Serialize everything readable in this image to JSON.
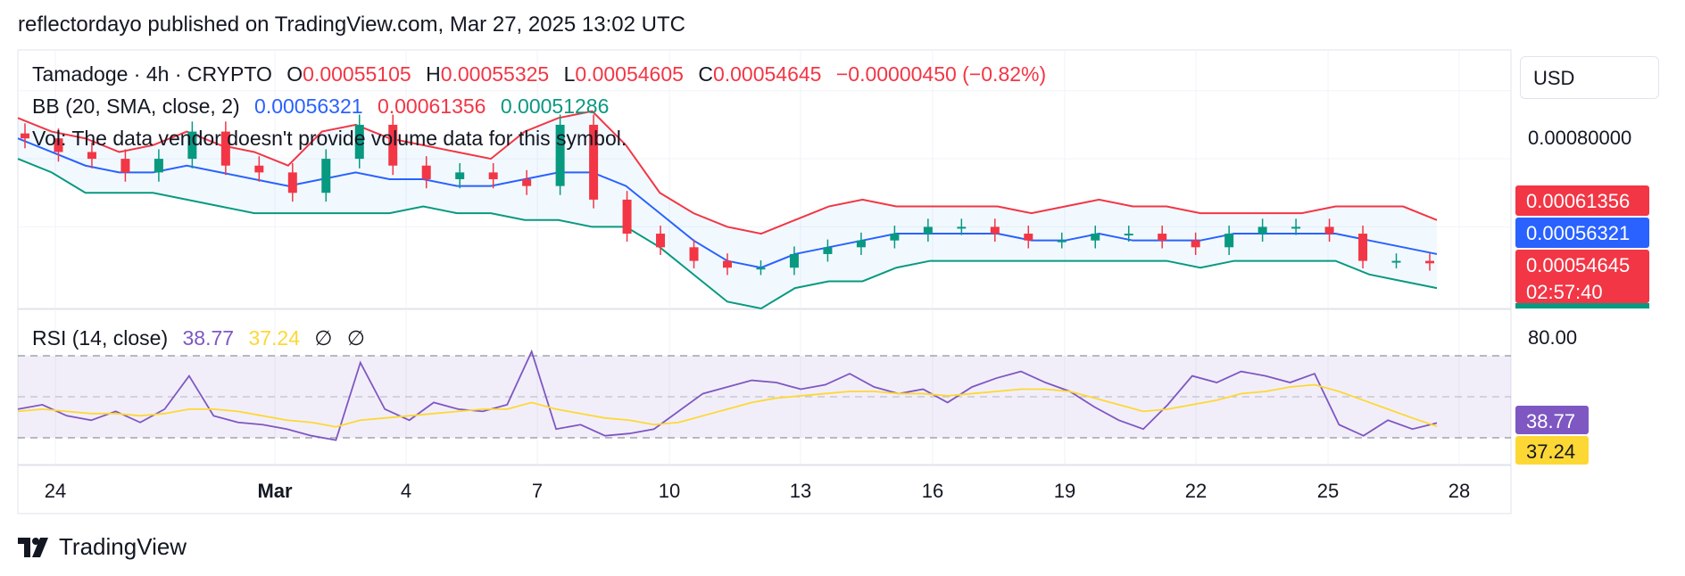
{
  "header": {
    "published": "reflectordayo published on TradingView.com, Mar 27, 2025 13:02 UTC"
  },
  "legend": {
    "symbol": "Tamadoge · 4h · CRYPTO",
    "o_label": "O",
    "o": "0.00055105",
    "h_label": "H",
    "h": "0.00055325",
    "l_label": "L",
    "l": "0.00054605",
    "c_label": "C",
    "c": "0.00054645",
    "change": "−0.00000450 (−0.82%)",
    "bb_label": "BB (20, SMA, close, 2)",
    "bb_mid": "0.00056321",
    "bb_upper": "0.00061356",
    "bb_lower": "0.00051286",
    "vol_note": "Vol: The data vendor doesn't provide volume data for this symbol.",
    "rsi_label": "RSI (14, close)",
    "rsi_value": "38.77",
    "rsi_ma": "37.24",
    "rsi_na1": "∅",
    "rsi_na2": "∅"
  },
  "currency_button": "USD",
  "footer": {
    "brand": "TradingView"
  },
  "colors": {
    "up": "#089981",
    "down": "#f23645",
    "bb_mid": "#2962ff",
    "rsi": "#7e57c2",
    "rsi_ma": "#fdd835"
  },
  "chart_data": [
    {
      "type": "candlestick",
      "title": "Tamadoge · 4h · CRYPTO",
      "y_axis_labels": [
        "0.00080000"
      ],
      "ylim": [
        0.00048,
        0.00086
      ],
      "x_tick_labels": [
        "24",
        "Mar",
        "4",
        "7",
        "10",
        "13",
        "16",
        "19",
        "22",
        "25",
        "28"
      ],
      "price_labels": [
        {
          "name": "bb-upper",
          "value": "0.00061356",
          "color": "#f23645"
        },
        {
          "name": "bb-mid",
          "value": "0.00056321",
          "color": "#2962ff"
        },
        {
          "name": "last-price",
          "value": "0.00054645",
          "countdown": "02:57:40",
          "color": "#f23645"
        }
      ],
      "bollinger": {
        "upper": [
          0.00076,
          0.00074,
          0.00073,
          0.00071,
          0.00072,
          0.00074,
          0.00072,
          0.00071,
          0.00069,
          0.00074,
          0.00075,
          0.00073,
          0.00072,
          0.00071,
          0.0007,
          0.00074,
          0.00076,
          0.00077,
          0.00072,
          0.00065,
          0.00062,
          0.0006,
          0.00059,
          0.00061,
          0.00063,
          0.00064,
          0.00063,
          0.00063,
          0.00063,
          0.00063,
          0.00062,
          0.00063,
          0.00064,
          0.00063,
          0.00063,
          0.00062,
          0.00062,
          0.00062,
          0.00062,
          0.00063,
          0.00063,
          0.00063,
          0.00061
        ],
        "middle": [
          0.00073,
          0.00071,
          0.00069,
          0.00068,
          0.00068,
          0.00069,
          0.00068,
          0.00067,
          0.00066,
          0.00067,
          0.00068,
          0.00067,
          0.00067,
          0.00066,
          0.00066,
          0.00067,
          0.00068,
          0.00068,
          0.00066,
          0.00062,
          0.00058,
          0.00055,
          0.00054,
          0.00056,
          0.00057,
          0.00058,
          0.00059,
          0.00059,
          0.00059,
          0.00059,
          0.00058,
          0.00058,
          0.00059,
          0.00058,
          0.00058,
          0.00058,
          0.00059,
          0.00059,
          0.00059,
          0.00059,
          0.00058,
          0.00057,
          0.00056
        ],
        "lower": [
          0.0007,
          0.00068,
          0.00065,
          0.00065,
          0.00065,
          0.00064,
          0.00063,
          0.00062,
          0.00062,
          0.00062,
          0.00062,
          0.00062,
          0.00063,
          0.00062,
          0.00062,
          0.00061,
          0.00061,
          0.0006,
          0.0006,
          0.00057,
          0.00053,
          0.00049,
          0.00048,
          0.00051,
          0.00052,
          0.00052,
          0.00054,
          0.00055,
          0.00055,
          0.00055,
          0.00055,
          0.00055,
          0.00055,
          0.00055,
          0.00055,
          0.00054,
          0.00055,
          0.00055,
          0.00055,
          0.00055,
          0.00053,
          0.00052,
          0.00051
        ]
      },
      "candles_close": [
        0.00073,
        0.00071,
        0.0007,
        0.00068,
        0.0007,
        0.00074,
        0.00069,
        0.00068,
        0.00065,
        0.0007,
        0.00075,
        0.00069,
        0.00067,
        0.00068,
        0.00067,
        0.00066,
        0.00075,
        0.00064,
        0.00059,
        0.00057,
        0.00055,
        0.00054,
        0.00054,
        0.00056,
        0.00057,
        0.00058,
        0.00059,
        0.0006,
        0.0006,
        0.00059,
        0.00058,
        0.00058,
        0.00059,
        0.00059,
        0.00058,
        0.00057,
        0.00059,
        0.0006,
        0.0006,
        0.00059,
        0.00055,
        0.00055,
        0.00054645
      ]
    },
    {
      "type": "line",
      "title": "RSI (14, close)",
      "ylim": [
        20,
        90
      ],
      "y_axis_labels": [
        "80.00"
      ],
      "bands": [
        70,
        50,
        30
      ],
      "series": [
        {
          "name": "RSI",
          "color": "#7e57c2",
          "last": "38.77",
          "values": [
            45,
            47,
            42,
            40,
            44,
            39,
            45,
            60,
            42,
            39,
            38,
            36,
            33,
            31,
            66,
            45,
            40,
            48,
            45,
            44,
            47,
            71,
            36,
            38,
            33,
            34,
            36,
            44,
            52,
            55,
            58,
            57,
            54,
            56,
            61,
            55,
            52,
            54,
            48,
            55,
            59,
            62,
            57,
            53,
            46,
            40,
            36,
            47,
            60,
            57,
            62,
            60,
            57,
            61,
            38,
            33,
            40,
            36,
            38.77
          ]
        },
        {
          "name": "RSI MA",
          "color": "#fdd835",
          "last": "37.24",
          "values": [
            44,
            45,
            44,
            43,
            43,
            42,
            43,
            45,
            45,
            44,
            42,
            40,
            39,
            37,
            40,
            41,
            42,
            43,
            44,
            45,
            45,
            48,
            45,
            43,
            41,
            40,
            38,
            39,
            42,
            45,
            48,
            50,
            51,
            52,
            53,
            53,
            52,
            52,
            51,
            52,
            53,
            54,
            54,
            53,
            50,
            47,
            44,
            45,
            47,
            49,
            52,
            53,
            55,
            56,
            53,
            49,
            45,
            41,
            37.24
          ]
        }
      ]
    }
  ]
}
